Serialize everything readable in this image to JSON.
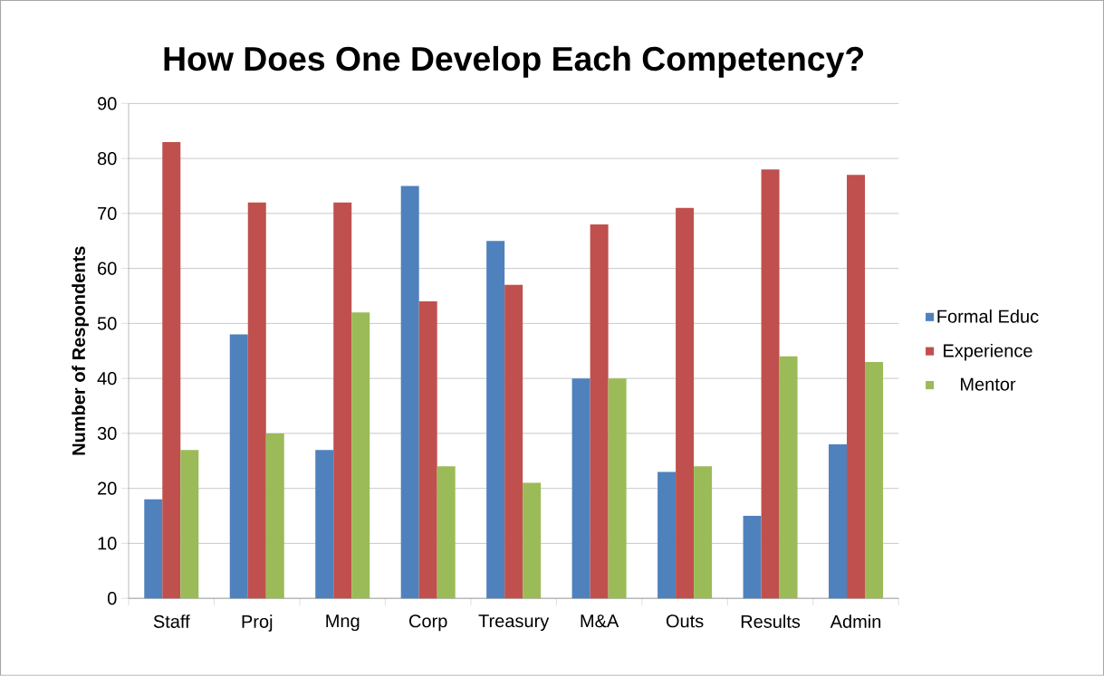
{
  "chart_data": {
    "type": "bar",
    "title": "How Does One Develop Each Competency?",
    "ylabel": "Number of Respondents",
    "categories": [
      "Staff",
      "Proj",
      "Mng",
      "Corp",
      "Treasury",
      "M&A",
      "Outs",
      "Results",
      "Admin"
    ],
    "series": [
      {
        "name": "Formal Educ",
        "color": "#4f81bd",
        "values": [
          18,
          48,
          27,
          75,
          65,
          40,
          23,
          15,
          28
        ]
      },
      {
        "name": "Experience",
        "color": "#c0504d",
        "values": [
          83,
          72,
          72,
          54,
          57,
          68,
          71,
          78,
          77
        ]
      },
      {
        "name": "Mentor",
        "color": "#9bbb59",
        "values": [
          27,
          30,
          52,
          24,
          21,
          40,
          24,
          44,
          43
        ]
      }
    ],
    "ylim": [
      0,
      90
    ],
    "yticks": [
      0,
      10,
      20,
      30,
      40,
      50,
      60,
      70,
      80,
      90
    ],
    "grid": "y",
    "legend": "right"
  }
}
